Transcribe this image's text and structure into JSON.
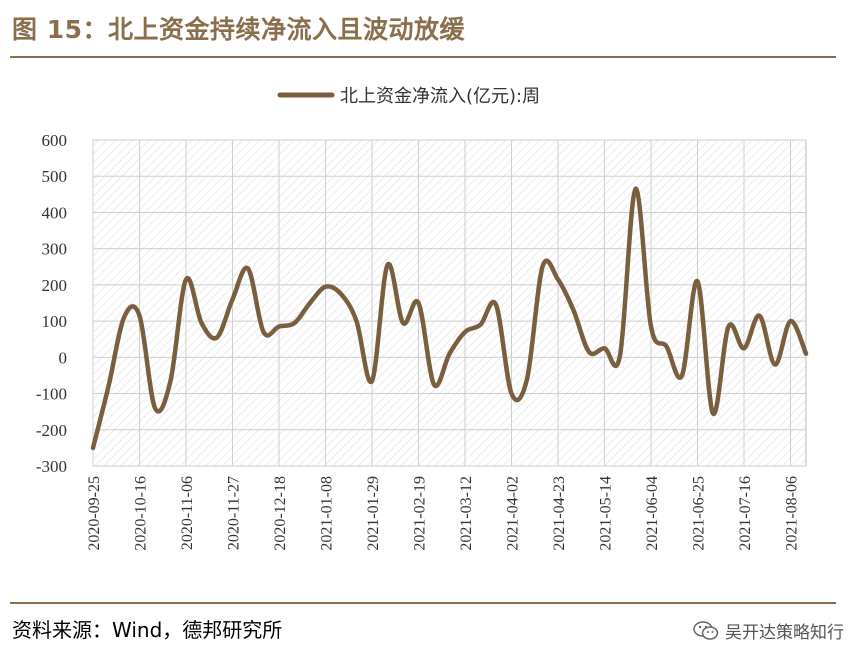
{
  "figure": {
    "title": "图 15：北上资金持续净流入且波动放缓",
    "source": "资料来源：Wind，德邦研究所",
    "watermark": "吴开达策略知行",
    "watermark_icon": "wechat-icon"
  },
  "colors": {
    "accent": "#8a6f4d",
    "series": "#7a5f3e",
    "grid": "#cfcfcf"
  },
  "chart_data": {
    "type": "line",
    "title": "",
    "xlabel": "",
    "ylabel": "",
    "ylim": [
      -300,
      600
    ],
    "yticks": [
      600,
      500,
      400,
      300,
      200,
      100,
      0,
      -100,
      -200,
      -300
    ],
    "xlim": [
      "2020-09-25",
      "2021-08-13"
    ],
    "xticks": [
      "2020-09-25",
      "2020-10-16",
      "2020-11-06",
      "2020-11-27",
      "2020-12-18",
      "2021-01-08",
      "2021-01-29",
      "2021-02-19",
      "2021-03-12",
      "2021-04-02",
      "2021-04-23",
      "2021-05-14",
      "2021-06-04",
      "2021-06-25",
      "2021-07-16",
      "2021-08-06"
    ],
    "legend": {
      "position": "top-center"
    },
    "grid": true,
    "series": [
      {
        "name": "北上资金净流入(亿元):周",
        "x": [
          "2020-09-25",
          "2020-10-02",
          "2020-10-09",
          "2020-10-16",
          "2020-10-23",
          "2020-10-30",
          "2020-11-06",
          "2020-11-13",
          "2020-11-20",
          "2020-11-27",
          "2020-12-04",
          "2020-12-11",
          "2020-12-18",
          "2020-12-25",
          "2021-01-01",
          "2021-01-08",
          "2021-01-15",
          "2021-01-22",
          "2021-01-29",
          "2021-02-05",
          "2021-02-12",
          "2021-02-19",
          "2021-02-26",
          "2021-03-05",
          "2021-03-12",
          "2021-03-19",
          "2021-03-26",
          "2021-04-02",
          "2021-04-09",
          "2021-04-16",
          "2021-04-23",
          "2021-04-30",
          "2021-05-07",
          "2021-05-14",
          "2021-05-21",
          "2021-05-28",
          "2021-06-04",
          "2021-06-11",
          "2021-06-18",
          "2021-06-25",
          "2021-07-02",
          "2021-07-09",
          "2021-07-16",
          "2021-07-23",
          "2021-07-30",
          "2021-08-06",
          "2021-08-13"
        ],
        "values": [
          -250,
          -80,
          110,
          115,
          -140,
          -65,
          215,
          95,
          55,
          160,
          245,
          70,
          85,
          95,
          150,
          195,
          175,
          100,
          -65,
          255,
          95,
          150,
          -75,
          10,
          70,
          90,
          145,
          -100,
          -60,
          250,
          215,
          130,
          15,
          25,
          5,
          465,
          85,
          30,
          -50,
          210,
          -155,
          85,
          25,
          115,
          -20,
          100,
          10
        ]
      }
    ]
  }
}
